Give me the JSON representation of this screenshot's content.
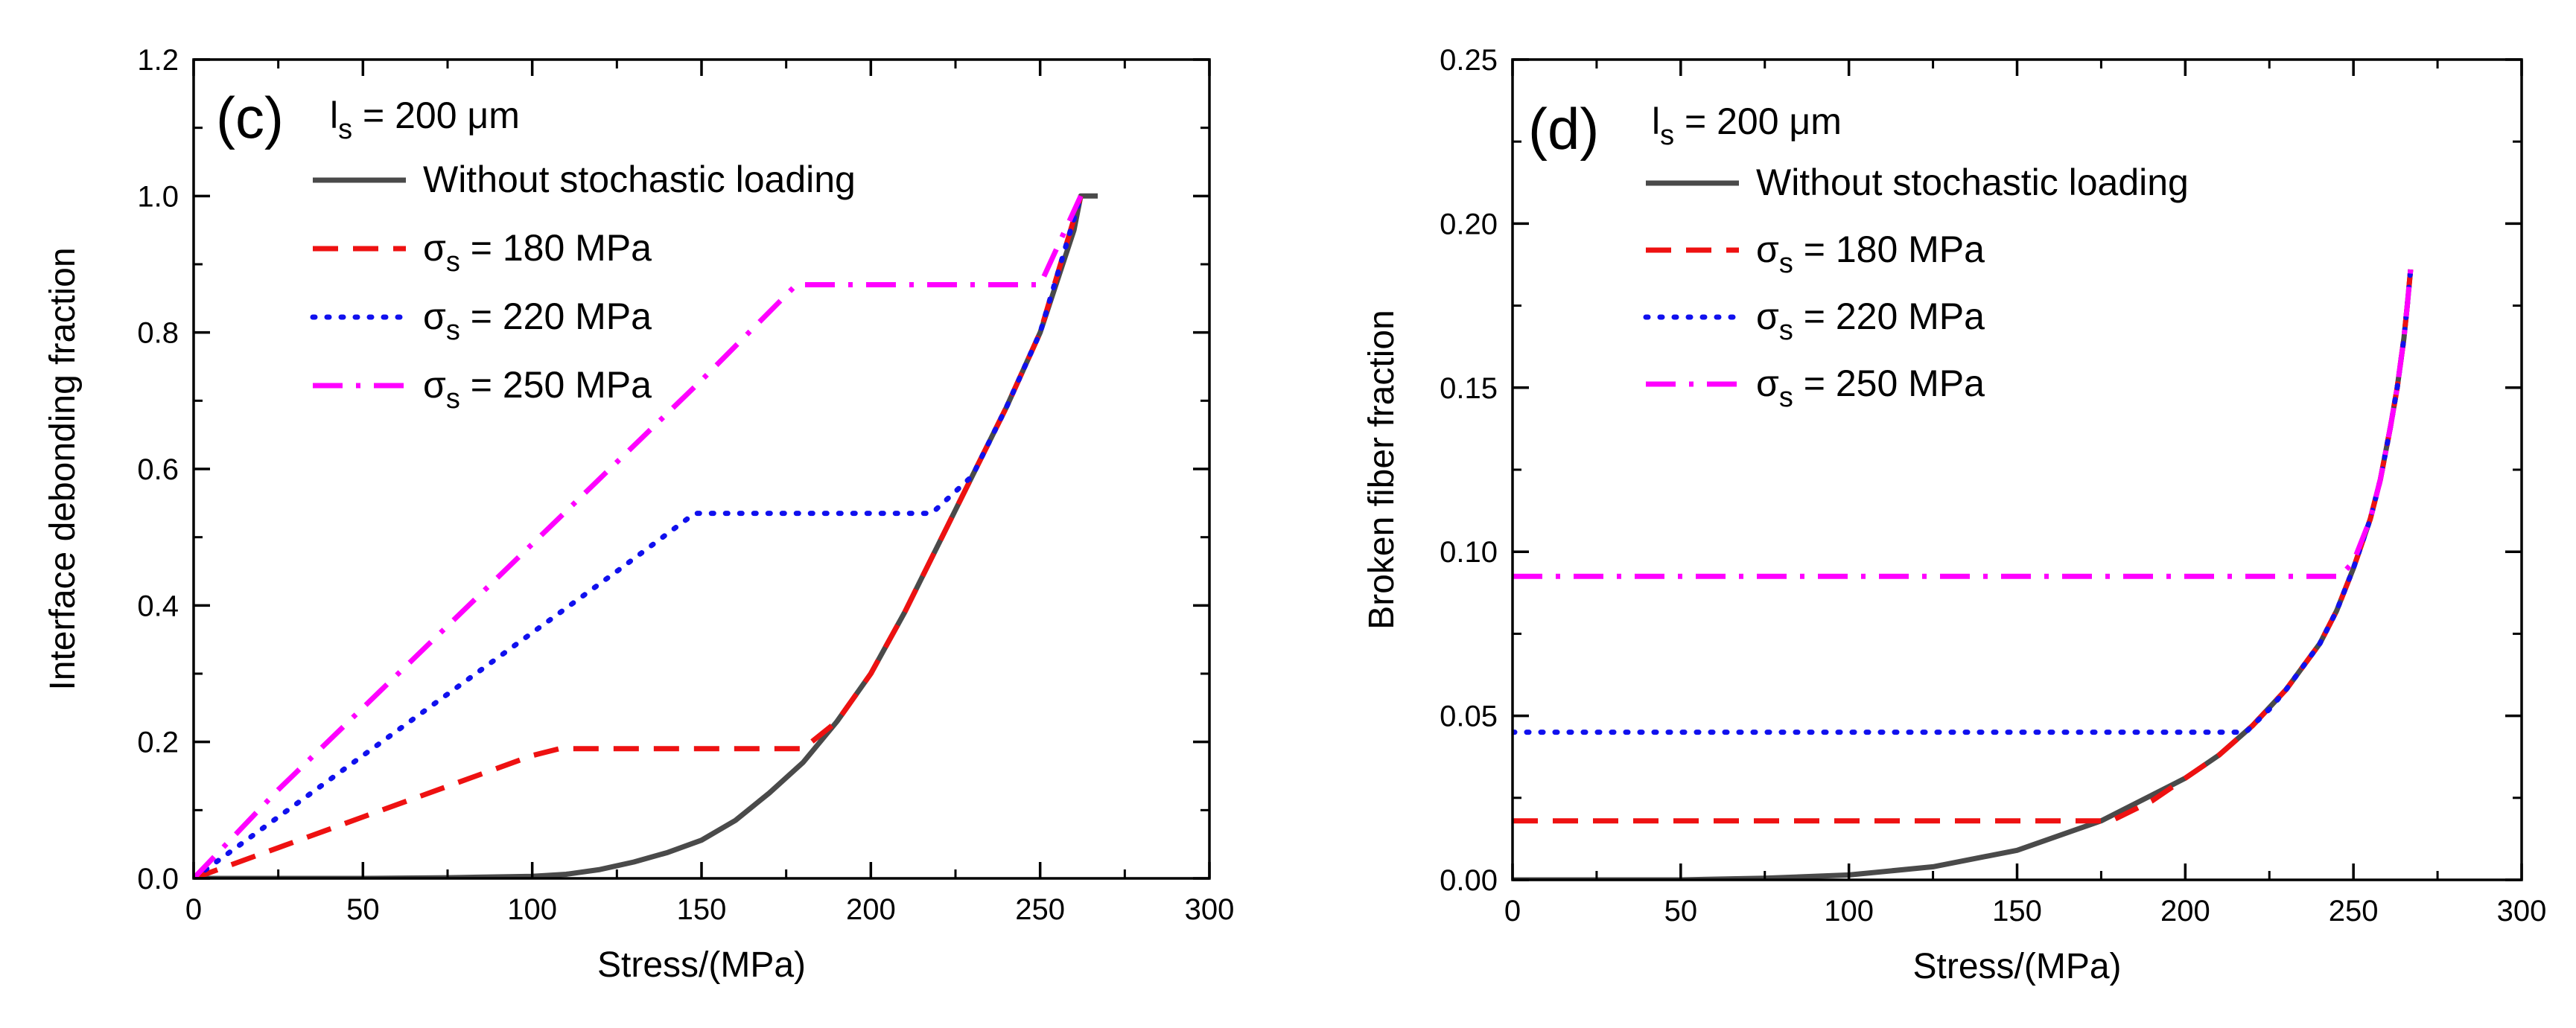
{
  "chart_data": [
    {
      "type": "line",
      "panel_label": "(c)",
      "param": {
        "sym": "l",
        "sub": "s",
        "rest": " = 200 μm"
      },
      "xlabel": "Stress/(MPa)",
      "ylabel": "Interface debonding fraction",
      "xlim": [
        0,
        300
      ],
      "ylim": [
        0,
        1.2
      ],
      "xticks": [
        "0",
        "50",
        "100",
        "150",
        "200",
        "250",
        "300"
      ],
      "yticks": [
        "0.0",
        "0.2",
        "0.4",
        "0.6",
        "0.8",
        "1.0",
        "1.2"
      ],
      "legend_position": "top-left",
      "series": [
        {
          "name": "Without stochastic loading",
          "legend": {
            "text": "Without stochastic loading"
          },
          "color": "#4a4a4a",
          "dash": "solid",
          "x": [
            0,
            25,
            50,
            75,
            100,
            110,
            120,
            130,
            140,
            150,
            160,
            170,
            180,
            190,
            200,
            210,
            220,
            230,
            240,
            250,
            260,
            262,
            267
          ],
          "y": [
            0,
            0,
            0,
            0.001,
            0.003,
            0.006,
            0.013,
            0.024,
            0.038,
            0.056,
            0.085,
            0.125,
            0.17,
            0.23,
            0.3,
            0.39,
            0.49,
            0.59,
            0.69,
            0.8,
            0.95,
            1.0,
            1.0
          ]
        },
        {
          "name": "σs = 180 MPa",
          "legend": {
            "sym": "σ",
            "sub": "s",
            "rest": " = 180 MPa"
          },
          "color": "#ee1111",
          "dash": "dash",
          "x": [
            0,
            25,
            50,
            75,
            100,
            108,
            130,
            150,
            170,
            180,
            190,
            200,
            210,
            220,
            230,
            240,
            250,
            262
          ],
          "y": [
            0,
            0.045,
            0.09,
            0.135,
            0.18,
            0.19,
            0.19,
            0.19,
            0.19,
            0.19,
            0.23,
            0.3,
            0.39,
            0.49,
            0.59,
            0.69,
            0.8,
            1.0
          ]
        },
        {
          "name": "σs = 220 MPa",
          "legend": {
            "sym": "σ",
            "sub": "s",
            "rest": " = 220 MPa"
          },
          "color": "#1010ee",
          "dash": "dot",
          "x": [
            0,
            25,
            50,
            75,
            100,
            125,
            148,
            175,
            200,
            218,
            230,
            240,
            250,
            262
          ],
          "y": [
            0,
            0.09,
            0.18,
            0.27,
            0.36,
            0.45,
            0.535,
            0.535,
            0.535,
            0.535,
            0.59,
            0.69,
            0.8,
            1.0
          ]
        },
        {
          "name": "σs = 250 MPa",
          "legend": {
            "sym": "σ",
            "sub": "s",
            "rest": " = 250 MPa"
          },
          "color": "#ff00ff",
          "dash": "dashdot",
          "x": [
            0,
            25,
            50,
            75,
            100,
            125,
            150,
            178,
            200,
            225,
            250,
            262
          ],
          "y": [
            0,
            0.13,
            0.25,
            0.37,
            0.49,
            0.61,
            0.73,
            0.87,
            0.87,
            0.87,
            0.87,
            1.0
          ]
        }
      ]
    },
    {
      "type": "line",
      "panel_label": "(d)",
      "param": {
        "sym": "l",
        "sub": "s",
        "rest": " = 200 μm"
      },
      "xlabel": "Stress/(MPa)",
      "ylabel": "Broken fiber fraction",
      "xlim": [
        0,
        300
      ],
      "ylim": [
        0,
        0.25
      ],
      "xticks": [
        "0",
        "50",
        "100",
        "150",
        "200",
        "250",
        "300"
      ],
      "yticks": [
        "0.00",
        "0.05",
        "0.10",
        "0.15",
        "0.20",
        "0.25"
      ],
      "legend_position": "top-left",
      "series": [
        {
          "name": "Without stochastic loading",
          "legend": {
            "text": "Without stochastic loading"
          },
          "color": "#4a4a4a",
          "dash": "solid",
          "x": [
            0,
            25,
            50,
            75,
            100,
            125,
            150,
            175,
            200,
            210,
            220,
            230,
            240,
            245,
            250,
            255,
            258,
            261,
            263,
            265,
            266,
            267
          ],
          "y": [
            0,
            0,
            0,
            0.0005,
            0.0015,
            0.004,
            0.009,
            0.018,
            0.031,
            0.038,
            0.047,
            0.058,
            0.072,
            0.082,
            0.095,
            0.11,
            0.122,
            0.138,
            0.15,
            0.165,
            0.175,
            0.186
          ]
        },
        {
          "name": "σs = 180 MPa",
          "legend": {
            "sym": "σ",
            "sub": "s",
            "rest": " = 180 MPa"
          },
          "color": "#ee1111",
          "dash": "dash",
          "x": [
            0,
            50,
            100,
            150,
            178,
            190,
            200,
            210,
            220,
            230,
            240,
            245,
            250,
            255,
            258,
            261,
            263,
            265,
            266,
            267
          ],
          "y": [
            0.018,
            0.018,
            0.018,
            0.018,
            0.018,
            0.024,
            0.031,
            0.038,
            0.047,
            0.058,
            0.072,
            0.082,
            0.095,
            0.11,
            0.122,
            0.138,
            0.15,
            0.165,
            0.175,
            0.186
          ]
        },
        {
          "name": "σs = 220 MPa",
          "legend": {
            "sym": "σ",
            "sub": "s",
            "rest": " = 220 MPa"
          },
          "color": "#1010ee",
          "dash": "dot",
          "x": [
            0,
            50,
            100,
            150,
            200,
            218,
            225,
            230,
            240,
            245,
            250,
            255,
            258,
            261,
            263,
            265,
            266,
            267
          ],
          "y": [
            0.045,
            0.045,
            0.045,
            0.045,
            0.045,
            0.045,
            0.052,
            0.058,
            0.072,
            0.082,
            0.095,
            0.11,
            0.122,
            0.138,
            0.15,
            0.165,
            0.175,
            0.186
          ]
        },
        {
          "name": "σs = 250 MPa",
          "legend": {
            "sym": "σ",
            "sub": "s",
            "rest": " = 250 MPa"
          },
          "color": "#ff00ff",
          "dash": "dashdot",
          "x": [
            0,
            50,
            100,
            150,
            200,
            246,
            250,
            255,
            258,
            261,
            263,
            265,
            266,
            267
          ],
          "y": [
            0.0925,
            0.0925,
            0.0925,
            0.0925,
            0.0925,
            0.0925,
            0.097,
            0.11,
            0.122,
            0.138,
            0.15,
            0.165,
            0.175,
            0.186
          ]
        }
      ]
    }
  ]
}
